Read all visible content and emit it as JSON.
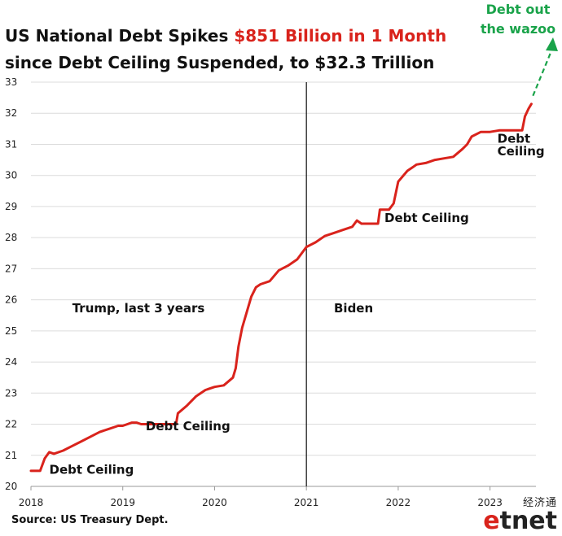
{
  "title": {
    "line1_prefix": "US National Debt Spikes ",
    "line1_highlight": "$851 Billion in 1 Month",
    "line2": "since Debt Ceiling Suspended, to $32.3 Trillion"
  },
  "source": "Source: US Treasury Dept.",
  "corner_annotation": {
    "line1": "Debt out",
    "line2": "the wazoo"
  },
  "watermark": {
    "chinese": "经济通",
    "logo_e": "e",
    "logo_rest": "tnet"
  },
  "colors": {
    "series": "#d9231c",
    "highlight": "#d9231c",
    "annotation_green": "#1aa34a",
    "grid": "#dcdcdc"
  },
  "chart_data": {
    "type": "line",
    "title": "US National Debt Spikes $851 Billion in 1 Month since Debt Ceiling Suspended, to $32.3 Trillion",
    "xlabel": "",
    "ylabel": "",
    "x_ticks": [
      "2018",
      "2019",
      "2020",
      "2021",
      "2022",
      "2023"
    ],
    "y_ticks": [
      "20",
      "21",
      "22",
      "23",
      "24",
      "25",
      "26",
      "27",
      "28",
      "29",
      "30",
      "31",
      "32",
      "33"
    ],
    "xlim": [
      2018.0,
      2023.5
    ],
    "ylim": [
      20,
      33
    ],
    "grid": true,
    "legend": "none",
    "series": [
      {
        "x": [
          2018.0,
          2018.1,
          2018.15,
          2018.2,
          2018.25,
          2018.35,
          2018.45,
          2018.55,
          2018.65,
          2018.75,
          2018.85,
          2018.95,
          2019.0,
          2019.1,
          2019.15,
          2019.2,
          2019.58,
          2019.6,
          2019.7,
          2019.8,
          2019.9,
          2020.0,
          2020.1,
          2020.2,
          2020.23,
          2020.26,
          2020.3,
          2020.35,
          2020.4,
          2020.45,
          2020.5,
          2020.6,
          2020.7,
          2020.8,
          2020.9,
          2021.0,
          2021.1,
          2021.2,
          2021.3,
          2021.4,
          2021.5,
          2021.55,
          2021.6,
          2021.78,
          2021.8,
          2021.9,
          2021.95,
          2022.0,
          2022.1,
          2022.2,
          2022.3,
          2022.4,
          2022.5,
          2022.6,
          2022.7,
          2022.75,
          2022.8,
          2022.9,
          2023.0,
          2023.1,
          2023.35,
          2023.38,
          2023.42,
          2023.45
        ],
        "y": [
          20.5,
          20.5,
          20.9,
          21.1,
          21.05,
          21.15,
          21.3,
          21.45,
          21.6,
          21.75,
          21.85,
          21.95,
          21.95,
          22.05,
          22.05,
          22.0,
          22.0,
          22.35,
          22.6,
          22.9,
          23.1,
          23.2,
          23.25,
          23.5,
          23.8,
          24.5,
          25.1,
          25.6,
          26.1,
          26.4,
          26.5,
          26.6,
          26.95,
          27.1,
          27.3,
          27.7,
          27.85,
          28.05,
          28.15,
          28.25,
          28.35,
          28.55,
          28.45,
          28.45,
          28.9,
          28.9,
          29.1,
          29.8,
          30.15,
          30.35,
          30.4,
          30.5,
          30.55,
          30.6,
          30.85,
          31.0,
          31.25,
          31.4,
          31.4,
          31.45,
          31.45,
          31.9,
          32.15,
          32.3
        ]
      }
    ],
    "vertical_line_x": 2021.0,
    "annotations": [
      {
        "text": "Debt Ceiling",
        "x": 2018.2,
        "y": 20.4
      },
      {
        "text": "Debt Ceiling",
        "x": 2019.25,
        "y": 21.8
      },
      {
        "text": "Debt Ceiling",
        "x": 2021.85,
        "y": 28.5
      },
      {
        "text": "Debt",
        "x": 2023.08,
        "y": 31.05
      },
      {
        "text": "Ceiling",
        "x": 2023.08,
        "y": 30.65
      },
      {
        "text": "Trump, last 3 years",
        "x": 2018.45,
        "y": 25.6
      },
      {
        "text": "Biden",
        "x": 2021.3,
        "y": 25.6
      }
    ]
  }
}
